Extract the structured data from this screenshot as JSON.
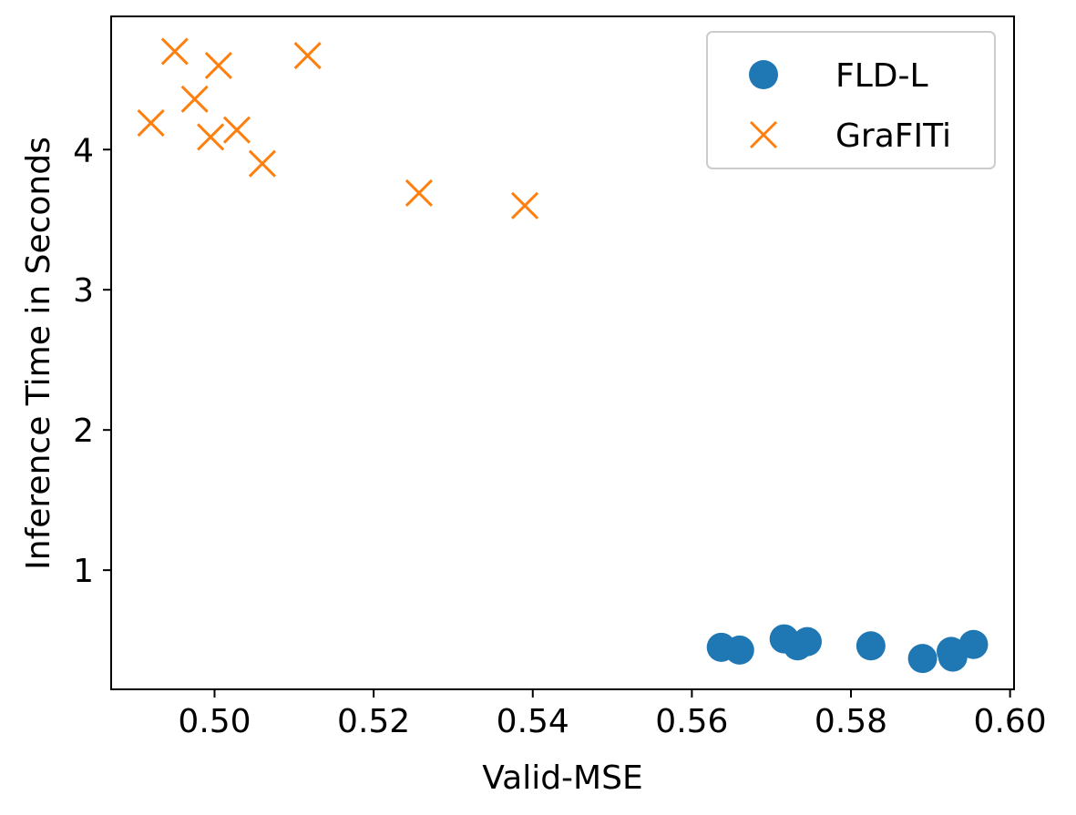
{
  "chart_data": {
    "type": "scatter",
    "title": "",
    "xlabel": "Valid-MSE",
    "ylabel": "Inference Time in Seconds",
    "xlim": [
      0.487,
      0.6005
    ],
    "ylim": [
      0.15,
      4.95
    ],
    "xticks": [
      0.5,
      0.52,
      0.54,
      0.56,
      0.58,
      0.6
    ],
    "xtick_labels": [
      "0.50",
      "0.52",
      "0.54",
      "0.56",
      "0.58",
      "0.60"
    ],
    "yticks": [
      1,
      2,
      3,
      4
    ],
    "ytick_labels": [
      "1",
      "2",
      "3",
      "4"
    ],
    "grid": false,
    "legend_position": "top-right",
    "series": [
      {
        "name": "FLD-L",
        "marker": "circle",
        "color": "#1f77b4",
        "points": [
          {
            "x": 0.5637,
            "y": 0.45
          },
          {
            "x": 0.566,
            "y": 0.43
          },
          {
            "x": 0.5716,
            "y": 0.51
          },
          {
            "x": 0.5733,
            "y": 0.46
          },
          {
            "x": 0.5745,
            "y": 0.49
          },
          {
            "x": 0.5825,
            "y": 0.46
          },
          {
            "x": 0.589,
            "y": 0.37
          },
          {
            "x": 0.5926,
            "y": 0.42
          },
          {
            "x": 0.5928,
            "y": 0.38
          },
          {
            "x": 0.5954,
            "y": 0.47
          }
        ]
      },
      {
        "name": "GraFITi",
        "marker": "x",
        "color": "#ff7f0e",
        "points": [
          {
            "x": 0.492,
            "y": 4.19
          },
          {
            "x": 0.495,
            "y": 4.7
          },
          {
            "x": 0.4975,
            "y": 4.36
          },
          {
            "x": 0.4995,
            "y": 4.09
          },
          {
            "x": 0.5005,
            "y": 4.6
          },
          {
            "x": 0.5028,
            "y": 4.14
          },
          {
            "x": 0.506,
            "y": 3.9
          },
          {
            "x": 0.5117,
            "y": 4.67
          },
          {
            "x": 0.5257,
            "y": 3.69
          },
          {
            "x": 0.539,
            "y": 3.6
          }
        ]
      }
    ]
  }
}
